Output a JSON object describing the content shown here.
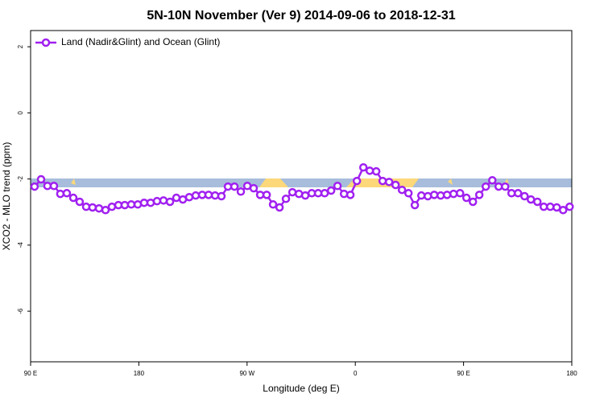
{
  "chart_data": {
    "type": "line",
    "title": "5N-10N November (Ver 9)   2014-09-06 to 2018-12-31",
    "x_label": "Longitude (deg E)",
    "y_label": "XCO2 - MLO trend (ppm)",
    "xlim": [
      -270,
      180
    ],
    "xticks": [
      {
        "value": -270,
        "label": "90 E"
      },
      {
        "value": -180,
        "label": "180"
      },
      {
        "value": -90,
        "label": "90 W"
      },
      0,
      {
        "value": 90,
        "label": "90 E"
      },
      180
    ],
    "ylim": [
      -7.53,
      2.49
    ],
    "yticks": [
      2,
      0,
      -2,
      -4,
      -6
    ],
    "legend": "top-left",
    "x": [
      -266.7,
      -261.3,
      -256.0,
      -250.6,
      -245.3,
      -239.9,
      -234.5,
      -229.2,
      -223.8,
      -218.5,
      -213.1,
      -207.7,
      -202.4,
      -197.0,
      -191.7,
      -186.3,
      -180.9,
      -175.6,
      -170.2,
      -164.9,
      -159.5,
      -154.1,
      -148.8,
      -143.4,
      -138.1,
      -132.7,
      -127.3,
      -122.0,
      -116.6,
      -111.3,
      -105.9,
      -100.5,
      -95.2,
      -89.8,
      -84.5,
      -79.1,
      -73.7,
      -68.4,
      -63.0,
      -57.7,
      -52.3,
      -46.9,
      -41.6,
      -36.2,
      -30.9,
      -25.5,
      -20.1,
      -14.8,
      -9.4,
      -4.1,
      1.3,
      6.7,
      12.0,
      17.4,
      22.7,
      28.1,
      33.5,
      38.8,
      44.2,
      49.5,
      54.9,
      60.3,
      65.6,
      71.0,
      76.3,
      81.7,
      87.1,
      92.4,
      97.8,
      103.1,
      108.5,
      113.9,
      119.2,
      124.6,
      129.9,
      135.3,
      140.7,
      146.0,
      151.4,
      156.7,
      162.1,
      167.5,
      172.8,
      178.2
    ],
    "series": [
      {
        "name": "Land (Nadir&Glint) and Ocean (Glint)",
        "color": "#a020f0",
        "values": [
          -2.23,
          -2.01,
          -2.21,
          -2.21,
          -2.45,
          -2.43,
          -2.57,
          -2.69,
          -2.84,
          -2.86,
          -2.89,
          -2.94,
          -2.84,
          -2.79,
          -2.79,
          -2.77,
          -2.77,
          -2.72,
          -2.72,
          -2.67,
          -2.65,
          -2.69,
          -2.57,
          -2.62,
          -2.55,
          -2.5,
          -2.48,
          -2.48,
          -2.5,
          -2.52,
          -2.23,
          -2.23,
          -2.38,
          -2.21,
          -2.28,
          -2.48,
          -2.48,
          -2.77,
          -2.86,
          -2.6,
          -2.4,
          -2.45,
          -2.5,
          -2.43,
          -2.43,
          -2.43,
          -2.35,
          -2.21,
          -2.45,
          -2.48,
          -2.06,
          -1.65,
          -1.75,
          -1.77,
          -2.06,
          -2.09,
          -2.18,
          -2.33,
          -2.43,
          -2.79,
          -2.5,
          -2.52,
          -2.48,
          -2.5,
          -2.48,
          -2.45,
          -2.43,
          -2.57,
          -2.69,
          -2.48,
          -2.23,
          -2.04,
          -2.23,
          -2.23,
          -2.43,
          -2.43,
          -2.52,
          -2.62,
          -2.69,
          -2.84,
          -2.84,
          -2.86,
          -2.94,
          -2.84
        ]
      }
    ]
  }
}
